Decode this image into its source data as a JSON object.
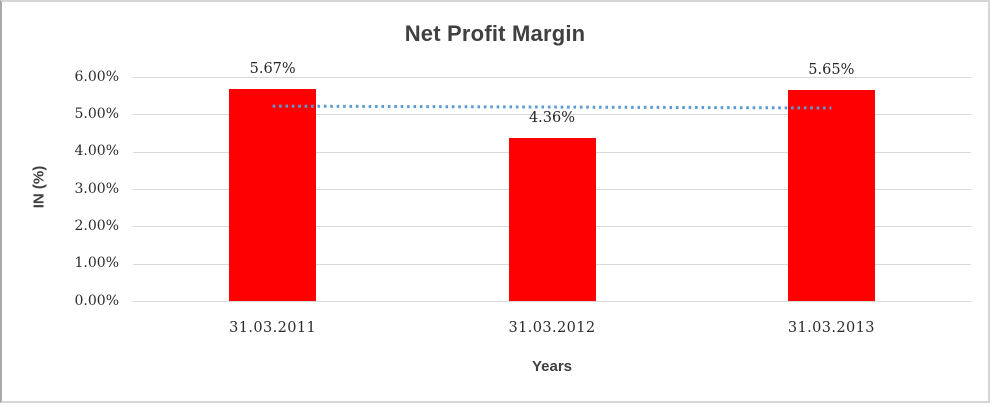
{
  "chart_data": {
    "type": "bar",
    "title": "Net Profit Margin",
    "xlabel": "Years",
    "ylabel": "IN (%)",
    "categories": [
      "31.03.2011",
      "31.03.2012",
      "31.03.2013"
    ],
    "values": [
      5.67,
      4.36,
      5.65
    ],
    "data_labels": [
      "5.67%",
      "4.36%",
      "5.65%"
    ],
    "ytick_labels": [
      "0.00%",
      "1.00%",
      "2.00%",
      "3.00%",
      "4.00%",
      "5.00%",
      "6.00%"
    ],
    "ylim": [
      0,
      6
    ],
    "grid": true,
    "legend_position": "none",
    "bar_color": "#FF0000",
    "trendline": {
      "type": "linear",
      "style": "dotted",
      "color": "#5B9BD5",
      "start_value": 5.22,
      "end_value": 5.17
    },
    "colors": {
      "title_text": "#404040",
      "axis_title_text": "#404040",
      "tick_text": "#2b2b2b",
      "gridline": "#D9D9D9",
      "background": "#FFFFFF",
      "frame_border": "#C8C8C8"
    }
  }
}
